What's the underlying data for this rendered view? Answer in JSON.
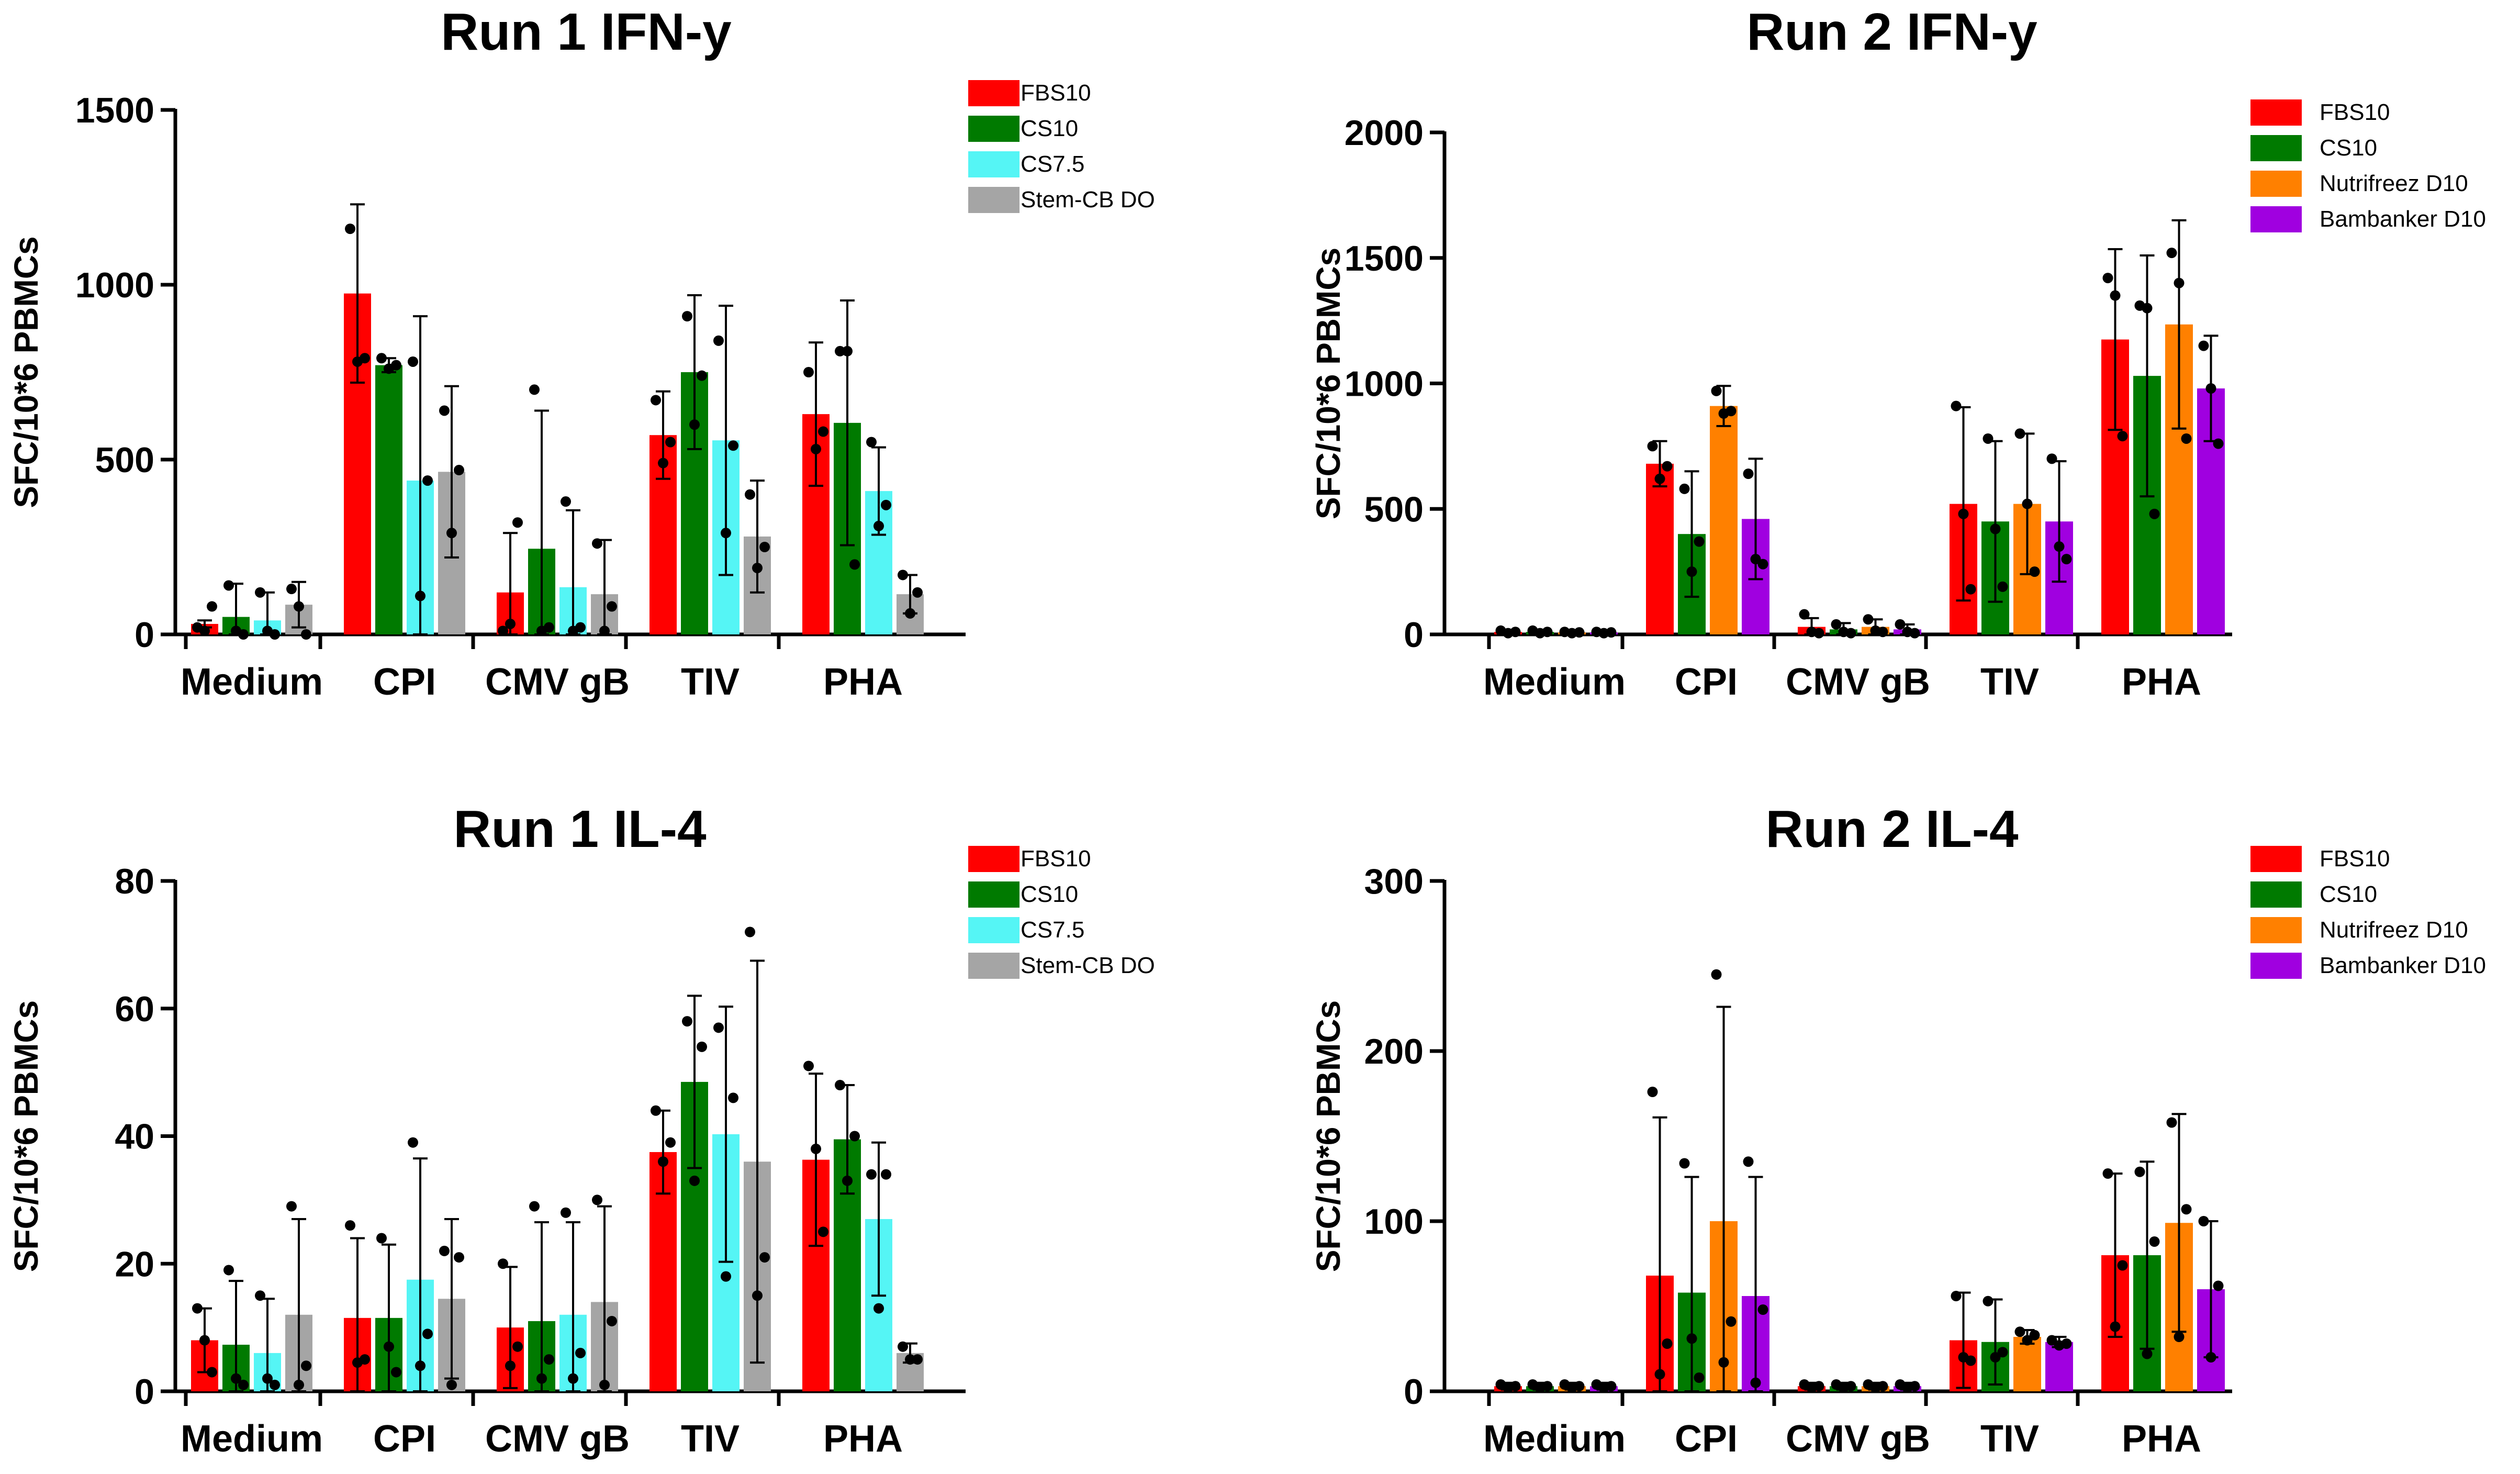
{
  "chart_data": [
    {
      "type": "bar",
      "title": "Run 1 IFN-y",
      "xlabel": "",
      "ylabel": "SFC/10*6 PBMCs",
      "ylim": [
        0,
        1500
      ],
      "yticks": [
        "0",
        "500",
        "1000",
        "1500"
      ],
      "categories": [
        "Medium",
        "CPI",
        "CMV gB",
        "TIV",
        "PHA"
      ],
      "legend_position": "top-right",
      "series": [
        {
          "name": "FBS10",
          "color": "#ff0000",
          "values": [
            30,
            975,
            120,
            570,
            630
          ],
          "error": [
            10,
            255,
            170,
            125,
            205
          ],
          "points": [
            [
              20,
              10,
              80
            ],
            [
              1160,
              780,
              790
            ],
            [
              10,
              30,
              320
            ],
            [
              670,
              490,
              550
            ],
            [
              750,
              530,
              580
            ]
          ]
        },
        {
          "name": "CS10",
          "color": "#007a00",
          "values": [
            50,
            770,
            245,
            750,
            605
          ],
          "error": [
            95,
            20,
            395,
            220,
            350
          ],
          "points": [
            [
              140,
              10,
              0
            ],
            [
              790,
              760,
              770
            ],
            [
              700,
              10,
              20
            ],
            [
              910,
              600,
              740
            ],
            [
              810,
              810,
              200
            ]
          ]
        },
        {
          "name": "CS7.5",
          "color": "#55f5f5",
          "values": [
            40,
            440,
            135,
            555,
            410
          ],
          "error": [
            80,
            470,
            220,
            385,
            125
          ],
          "points": [
            [
              120,
              10,
              0
            ],
            [
              780,
              110,
              440
            ],
            [
              380,
              10,
              20
            ],
            [
              840,
              290,
              540
            ],
            [
              550,
              310,
              370
            ]
          ]
        },
        {
          "name": "Stem-CB DO",
          "color": "#a5a5a5",
          "values": [
            85,
            465,
            115,
            280,
            115
          ],
          "error": [
            65,
            245,
            155,
            160,
            55
          ],
          "points": [
            [
              130,
              80,
              0
            ],
            [
              640,
              290,
              470
            ],
            [
              260,
              10,
              80
            ],
            [
              400,
              190,
              250
            ],
            [
              170,
              60,
              120
            ]
          ]
        }
      ]
    },
    {
      "type": "bar",
      "title": "Run 2 IFN-y",
      "xlabel": "",
      "ylabel": "SFC/10*6 PBMCs",
      "ylim": [
        0,
        2000
      ],
      "yticks": [
        "0",
        "500",
        "1000",
        "1500",
        "2000"
      ],
      "categories": [
        "Medium",
        "CPI",
        "CMV gB",
        "TIV",
        "PHA"
      ],
      "legend_position": "top-right",
      "series": [
        {
          "name": "FBS10",
          "color": "#ff0000",
          "values": [
            10,
            680,
            30,
            520,
            1175
          ],
          "error": [
            8,
            90,
            35,
            385,
            360
          ],
          "points": [
            [
              15,
              5,
              10
            ],
            [
              750,
              620,
              670
            ],
            [
              80,
              10,
              5
            ],
            [
              910,
              480,
              180
            ],
            [
              1420,
              1350,
              790
            ]
          ]
        },
        {
          "name": "CS10",
          "color": "#007a00",
          "values": [
            10,
            400,
            20,
            450,
            1030
          ],
          "error": [
            8,
            250,
            25,
            320,
            480
          ],
          "points": [
            [
              15,
              5,
              10
            ],
            [
              580,
              250,
              370
            ],
            [
              40,
              10,
              5
            ],
            [
              780,
              420,
              190
            ],
            [
              1310,
              1300,
              480
            ]
          ]
        },
        {
          "name": "Nutrifreez D10",
          "color": "#ff8000",
          "values": [
            8,
            910,
            30,
            520,
            1235
          ],
          "error": [
            6,
            80,
            30,
            280,
            415
          ],
          "points": [
            [
              10,
              5,
              8
            ],
            [
              970,
              880,
              890
            ],
            [
              60,
              15,
              10
            ],
            [
              800,
              520,
              250
            ],
            [
              1520,
              1400,
              780
            ]
          ]
        },
        {
          "name": "Bambanker D10",
          "color": "#a000e0",
          "values": [
            8,
            460,
            20,
            450,
            980
          ],
          "error": [
            6,
            240,
            20,
            240,
            210
          ],
          "points": [
            [
              10,
              5,
              8
            ],
            [
              640,
              300,
              280
            ],
            [
              40,
              10,
              5
            ],
            [
              700,
              350,
              300
            ],
            [
              1150,
              980,
              760
            ]
          ]
        }
      ]
    },
    {
      "type": "bar",
      "title": "Run 1 IL-4",
      "xlabel": "",
      "ylabel": "SFC/10*6 PBMCs",
      "ylim": [
        0,
        80
      ],
      "yticks": [
        "0",
        "20",
        "40",
        "60",
        "80"
      ],
      "categories": [
        "Medium",
        "CPI",
        "CMV gB",
        "TIV",
        "PHA"
      ],
      "legend_position": "top-right",
      "series": [
        {
          "name": "FBS10",
          "color": "#ff0000",
          "values": [
            8,
            11.5,
            10,
            37.5,
            36.3
          ],
          "error": [
            5,
            12.5,
            9.5,
            6.5,
            13.5
          ],
          "points": [
            [
              13,
              8,
              3
            ],
            [
              26,
              4.5,
              5
            ],
            [
              20,
              4,
              7
            ],
            [
              44,
              36,
              39
            ],
            [
              51,
              38,
              25
            ]
          ]
        },
        {
          "name": "CS10",
          "color": "#007a00",
          "values": [
            7.3,
            11.5,
            11,
            48.5,
            39.5
          ],
          "error": [
            10,
            11.5,
            15.5,
            13.5,
            8.5
          ],
          "points": [
            [
              19,
              2,
              1
            ],
            [
              24,
              7,
              3
            ],
            [
              29,
              2,
              5
            ],
            [
              58,
              33,
              54
            ],
            [
              48,
              33,
              40
            ]
          ]
        },
        {
          "name": "CS7.5",
          "color": "#55f5f5",
          "values": [
            6,
            17.5,
            12,
            40.3,
            27
          ],
          "error": [
            8.5,
            19,
            14.5,
            20,
            12
          ],
          "points": [
            [
              15,
              2,
              1
            ],
            [
              39,
              4,
              9
            ],
            [
              28,
              2,
              6
            ],
            [
              57,
              18,
              46
            ],
            [
              34,
              13,
              34
            ]
          ]
        },
        {
          "name": "Stem-CB DO",
          "color": "#a5a5a5",
          "values": [
            12,
            14.5,
            14,
            36,
            6
          ],
          "error": [
            15,
            12.5,
            15,
            31.5,
            1.5
          ],
          "points": [
            [
              29,
              1,
              4
            ],
            [
              22,
              1,
              21
            ],
            [
              30,
              1,
              11
            ],
            [
              72,
              15,
              21
            ],
            [
              7,
              5,
              5
            ]
          ]
        }
      ]
    },
    {
      "type": "bar",
      "title": "Run 2 IL-4",
      "xlabel": "",
      "ylabel": "SFC/10*6 PBMCs",
      "ylim": [
        0,
        300
      ],
      "yticks": [
        "0",
        "100",
        "200",
        "300"
      ],
      "categories": [
        "Medium",
        "CPI",
        "CMV gB",
        "TIV",
        "PHA"
      ],
      "legend_position": "top-right",
      "series": [
        {
          "name": "FBS10",
          "color": "#ff0000",
          "values": [
            3,
            68,
            3,
            30,
            80
          ],
          "error": [
            2,
            93,
            2,
            28,
            48
          ],
          "points": [
            [
              4,
              2,
              3
            ],
            [
              176,
              10,
              28
            ],
            [
              4,
              2,
              3
            ],
            [
              56,
              20,
              18
            ],
            [
              128,
              38,
              74
            ]
          ]
        },
        {
          "name": "CS10",
          "color": "#007a00",
          "values": [
            3,
            58,
            3,
            29,
            80
          ],
          "error": [
            2,
            68,
            2,
            25,
            55
          ],
          "points": [
            [
              4,
              2,
              3
            ],
            [
              134,
              31,
              8
            ],
            [
              4,
              2,
              3
            ],
            [
              53,
              20,
              23
            ],
            [
              129,
              22,
              88
            ]
          ]
        },
        {
          "name": "Nutrifreez D10",
          "color": "#ff8000",
          "values": [
            3,
            100,
            3,
            32,
            99
          ],
          "error": [
            2,
            126,
            2,
            4,
            64
          ],
          "points": [
            [
              4,
              2,
              3
            ],
            [
              245,
              17,
              41
            ],
            [
              4,
              2,
              3
            ],
            [
              35,
              30,
              33
            ],
            [
              158,
              32,
              107
            ]
          ]
        },
        {
          "name": "Bambanker D10",
          "color": "#a000e0",
          "values": [
            3,
            56,
            3,
            29,
            60
          ],
          "error": [
            2,
            70,
            2,
            3,
            40
          ],
          "points": [
            [
              4,
              2,
              3
            ],
            [
              135,
              5,
              48
            ],
            [
              4,
              2,
              3
            ],
            [
              30,
              27,
              28
            ],
            [
              100,
              20,
              62
            ]
          ]
        }
      ]
    }
  ]
}
